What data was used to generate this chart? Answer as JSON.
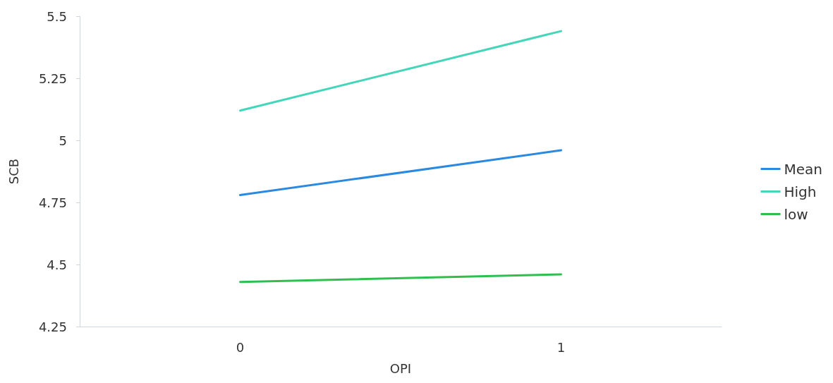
{
  "chart_data": {
    "type": "line",
    "xlabel": "OPI",
    "ylabel": "SCB",
    "categories": [
      "0",
      "1"
    ],
    "series": [
      {
        "name": "Mean",
        "color": "#2b8ae0",
        "values": [
          4.78,
          4.96
        ]
      },
      {
        "name": "High",
        "color": "#45d6b9",
        "values": [
          5.12,
          5.44
        ]
      },
      {
        "name": "low",
        "color": "#2fbf4f",
        "values": [
          4.43,
          4.46
        ]
      }
    ],
    "ylim": [
      4.25,
      5.5
    ],
    "yticks": [
      4.25,
      4.5,
      4.75,
      5,
      5.25,
      5.5
    ],
    "grid": false,
    "legend": "right",
    "marker": "none",
    "line_style": "solid"
  }
}
